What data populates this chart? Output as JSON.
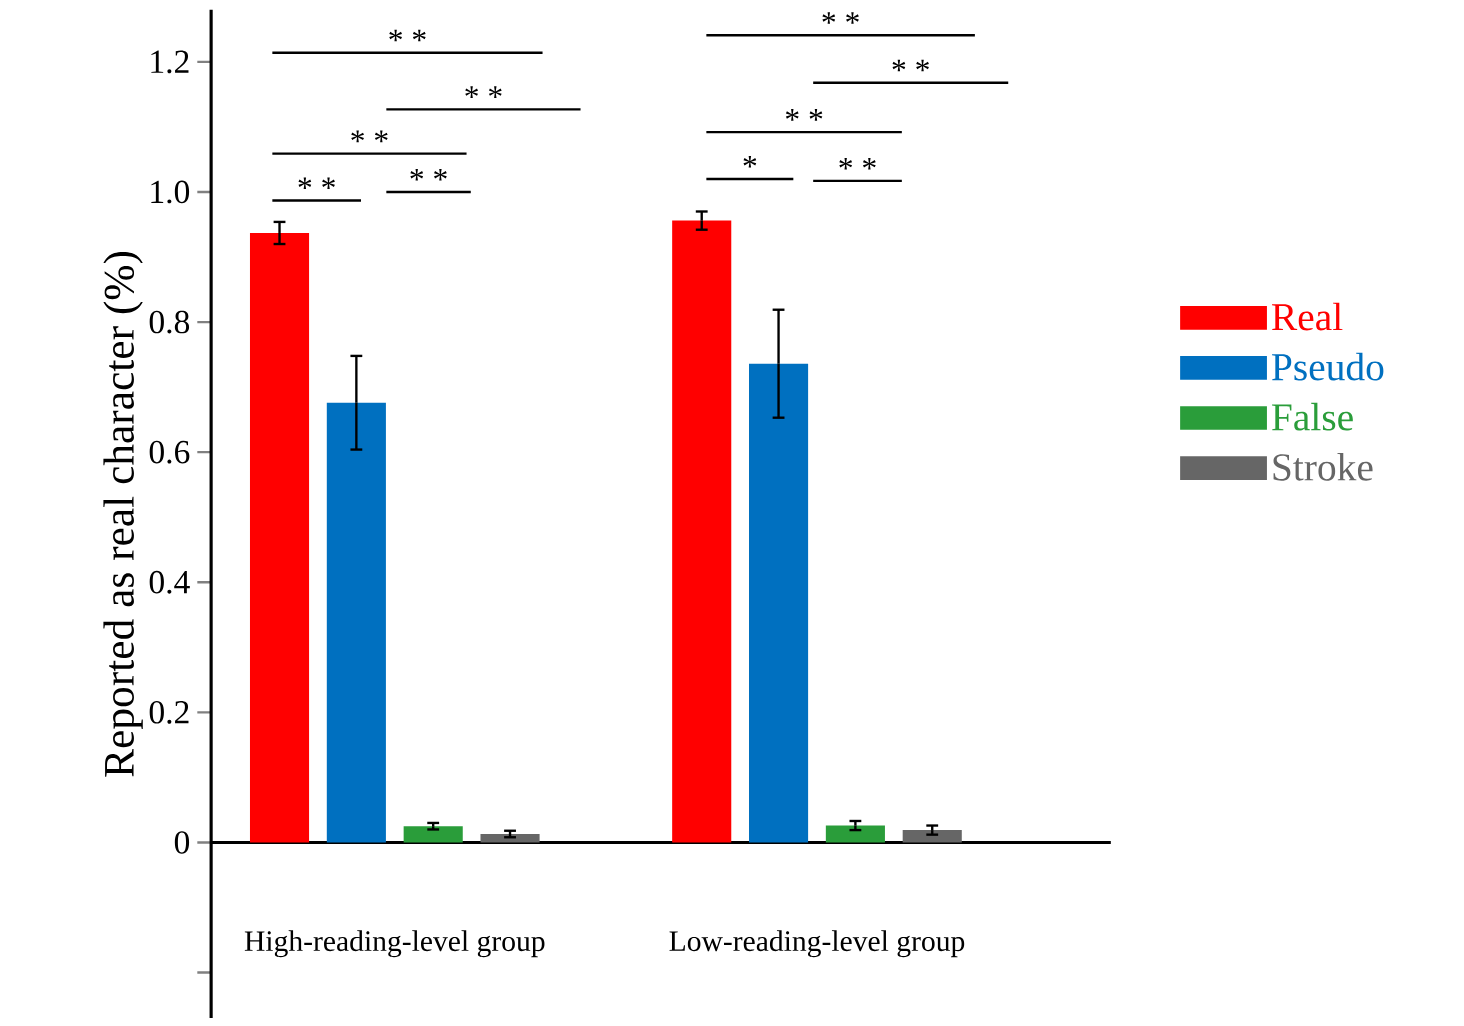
{
  "chart_data": {
    "type": "bar",
    "ylabel": "Reported as real character (%)",
    "categories": [
      "High-reading-level group",
      "Low-reading-level group"
    ],
    "series": [
      {
        "name": "Real",
        "color": "#ff0000",
        "values": [
          0.937,
          0.956
        ],
        "errors": [
          0.017,
          0.014
        ]
      },
      {
        "name": "Pseudo",
        "color": "#0070c0",
        "values": [
          0.676,
          0.736
        ],
        "errors": [
          0.072,
          0.083
        ]
      },
      {
        "name": "False",
        "color": "#2a9d3a",
        "values": [
          0.025,
          0.026
        ],
        "errors": [
          0.005,
          0.007
        ]
      },
      {
        "name": "Stroke",
        "color": "#666666",
        "values": [
          0.013,
          0.019
        ],
        "errors": [
          0.005,
          0.007
        ]
      }
    ],
    "ylim": [
      -0.27,
      1.28
    ],
    "yticks": [
      {
        "value": -0.2,
        "label": null
      },
      {
        "value": 0,
        "label": "0"
      },
      0.2,
      0.4,
      0.6,
      0.8,
      {
        "value": 1.0,
        "label": "1.0"
      },
      1.2
    ],
    "legend": "right",
    "annotations": [
      "* *",
      "* *",
      "* *",
      "* *",
      "* *",
      "* *",
      "* *",
      "* *",
      "*",
      "* *"
    ]
  }
}
